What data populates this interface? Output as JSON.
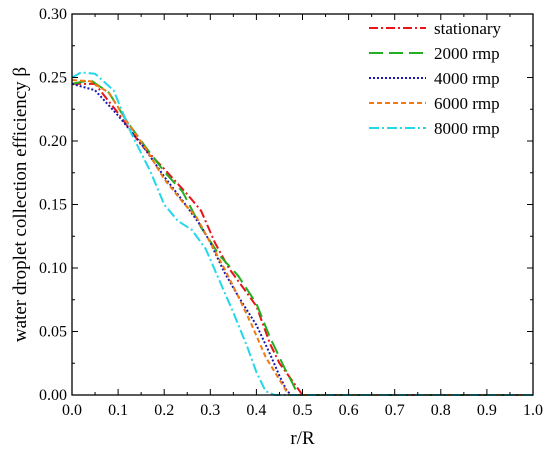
{
  "chart_data": {
    "type": "line",
    "xlabel": "r/R",
    "ylabel": "water droplet collection efficiency  β",
    "xlim": [
      0.0,
      1.0
    ],
    "ylim": [
      0.0,
      0.3
    ],
    "xticks": [
      0.0,
      0.1,
      0.2,
      0.3,
      0.4,
      0.5,
      0.6,
      0.7,
      0.8,
      0.9,
      1.0
    ],
    "xtick_labels": [
      "0.0",
      "0.1",
      "0.2",
      "0.3",
      "0.4",
      "0.5",
      "0.6",
      "0.7",
      "0.8",
      "0.9",
      "1.0"
    ],
    "yticks": [
      0.0,
      0.05,
      0.1,
      0.15,
      0.2,
      0.25,
      0.3
    ],
    "ytick_labels": [
      "0.00",
      "0.05",
      "0.10",
      "0.15",
      "0.20",
      "0.25",
      "0.30"
    ],
    "grid": false,
    "legend_position": "top-right",
    "series": [
      {
        "name": "stationary",
        "color": "#e8141a",
        "dash": "9,3,2,3",
        "x": [
          0.0,
          0.05,
          0.1,
          0.15,
          0.2,
          0.25,
          0.28,
          0.31,
          0.34,
          0.37,
          0.4,
          0.43,
          0.45,
          0.47,
          0.49,
          0.5,
          1.0
        ],
        "y": [
          0.245,
          0.245,
          0.222,
          0.197,
          0.178,
          0.158,
          0.145,
          0.12,
          0.1,
          0.085,
          0.07,
          0.04,
          0.025,
          0.015,
          0.005,
          0.0,
          0.0
        ]
      },
      {
        "name": "2000 rmp",
        "color": "#22b022",
        "dash": "14,6",
        "x": [
          0.0,
          0.04,
          0.08,
          0.12,
          0.16,
          0.2,
          0.24,
          0.28,
          0.32,
          0.36,
          0.4,
          0.43,
          0.46,
          0.48,
          0.49,
          1.0
        ],
        "y": [
          0.245,
          0.248,
          0.238,
          0.215,
          0.195,
          0.176,
          0.16,
          0.132,
          0.11,
          0.094,
          0.072,
          0.045,
          0.022,
          0.008,
          0.0,
          0.0
        ]
      },
      {
        "name": "4000 rmp",
        "color": "#1818b0",
        "dash": "2,2",
        "x": [
          0.0,
          0.05,
          0.1,
          0.15,
          0.2,
          0.24,
          0.28,
          0.3,
          0.33,
          0.36,
          0.4,
          0.43,
          0.45,
          0.465,
          0.475,
          1.0
        ],
        "y": [
          0.245,
          0.24,
          0.22,
          0.198,
          0.172,
          0.153,
          0.133,
          0.12,
          0.097,
          0.078,
          0.055,
          0.032,
          0.015,
          0.004,
          0.0,
          0.0
        ]
      },
      {
        "name": "6000 rmp",
        "color": "#f07a12",
        "dash": "5,3",
        "x": [
          0.0,
          0.04,
          0.08,
          0.12,
          0.16,
          0.2,
          0.24,
          0.27,
          0.3,
          0.33,
          0.36,
          0.39,
          0.42,
          0.45,
          0.47,
          1.0
        ],
        "y": [
          0.248,
          0.247,
          0.238,
          0.215,
          0.194,
          0.17,
          0.152,
          0.14,
          0.12,
          0.1,
          0.078,
          0.055,
          0.03,
          0.012,
          0.0,
          0.0
        ]
      },
      {
        "name": "8000 rmp",
        "color": "#22d8e8",
        "dash": "10,3,2,3",
        "x": [
          0.0,
          0.02,
          0.05,
          0.09,
          0.13,
          0.17,
          0.2,
          0.23,
          0.26,
          0.29,
          0.32,
          0.35,
          0.38,
          0.4,
          0.42,
          0.44,
          1.0
        ],
        "y": [
          0.25,
          0.254,
          0.253,
          0.24,
          0.205,
          0.176,
          0.15,
          0.137,
          0.13,
          0.115,
          0.09,
          0.065,
          0.038,
          0.018,
          0.003,
          0.0,
          0.0
        ]
      }
    ]
  }
}
